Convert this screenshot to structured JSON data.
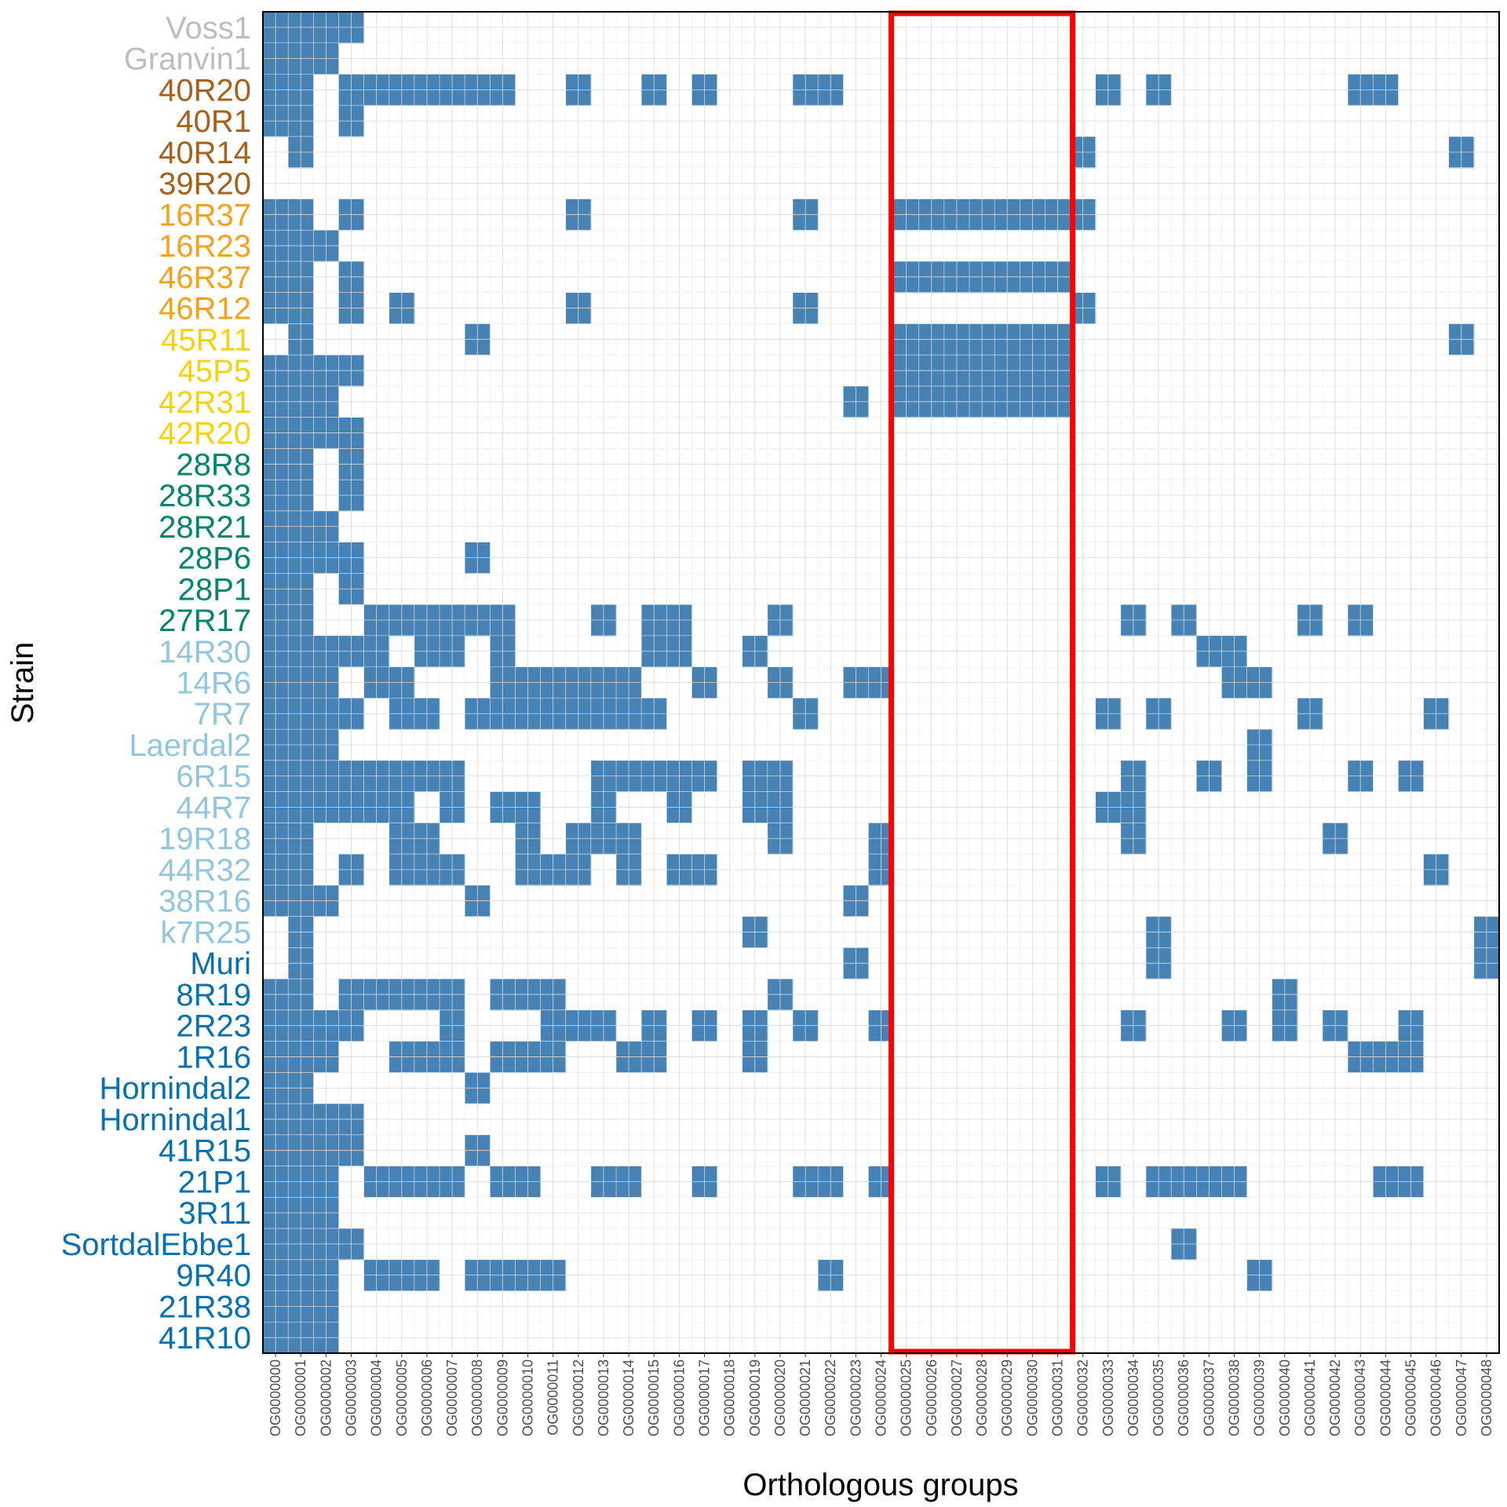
{
  "chart_data": {
    "type": "heatmap",
    "xlabel": "Orthologous groups",
    "ylabel": "Strain",
    "x_categories": [
      "OG0000000",
      "OG0000001",
      "OG0000002",
      "OG0000003",
      "OG0000004",
      "OG0000005",
      "OG0000006",
      "OG0000007",
      "OG0000008",
      "OG0000009",
      "OG0000010",
      "OG0000011",
      "OG0000012",
      "OG0000013",
      "OG0000014",
      "OG0000015",
      "OG0000016",
      "OG0000017",
      "OG0000018",
      "OG0000019",
      "OG0000020",
      "OG0000021",
      "OG0000022",
      "OG0000023",
      "OG0000024",
      "OG0000025",
      "OG0000026",
      "OG0000027",
      "OG0000028",
      "OG0000029",
      "OG0000030",
      "OG0000031",
      "OG0000032",
      "OG0000033",
      "OG0000034",
      "OG0000035",
      "OG0000036",
      "OG0000037",
      "OG0000038",
      "OG0000039",
      "OG0000040",
      "OG0000041",
      "OG0000042",
      "OG0000043",
      "OG0000044",
      "OG0000045",
      "OG0000046",
      "OG0000047",
      "OG0000048"
    ],
    "y_categories": [
      "Voss1",
      "Granvin1",
      "40R20",
      "40R1",
      "40R14",
      "39R20",
      "16R37",
      "16R23",
      "46R37",
      "46R12",
      "45R11",
      "45P5",
      "42R31",
      "42R20",
      "28R8",
      "28R33",
      "28R21",
      "28P6",
      "28P1",
      "27R17",
      "14R30",
      "14R6",
      "7R7",
      "Laerdal2",
      "6R15",
      "44R7",
      "19R18",
      "44R32",
      "38R16",
      "k7R25",
      "Muri",
      "8R19",
      "2R23",
      "1R16",
      "Hornindal2",
      "Hornindal1",
      "41R15",
      "21P1",
      "3R11",
      "SortdalEbbe1",
      "9R40",
      "21R38",
      "41R10"
    ],
    "label_colors": [
      "#bdbdbd",
      "#bdbdbd",
      "#a6611a",
      "#a6611a",
      "#a6611a",
      "#a6611a",
      "#f4a21d",
      "#f4a21d",
      "#f4a21d",
      "#f4a21d",
      "#f5d20c",
      "#f5d20c",
      "#f5d20c",
      "#f5d20c",
      "#018571",
      "#018571",
      "#018571",
      "#018571",
      "#018571",
      "#018571",
      "#92c5de",
      "#92c5de",
      "#92c5de",
      "#92c5de",
      "#92c5de",
      "#92c5de",
      "#92c5de",
      "#92c5de",
      "#92c5de",
      "#92c5de",
      "#0571b0",
      "#0571b0",
      "#0571b0",
      "#0571b0",
      "#0571b0",
      "#0571b0",
      "#0571b0",
      "#0571b0",
      "#0571b0",
      "#0571b0",
      "#0571b0",
      "#0571b0",
      "#0571b0"
    ],
    "presence": {
      "Voss1": [
        0,
        1,
        2,
        3
      ],
      "Granvin1": [
        0,
        1,
        2
      ],
      "40R20": [
        0,
        1,
        3,
        4,
        5,
        6,
        7,
        8,
        9,
        12,
        15,
        17,
        21,
        22,
        33,
        35,
        43,
        44
      ],
      "40R1": [
        0,
        1,
        3
      ],
      "40R14": [
        1,
        32,
        47
      ],
      "39R20": [],
      "16R37": [
        0,
        1,
        3,
        12,
        21,
        25,
        26,
        27,
        28,
        29,
        30,
        31,
        32
      ],
      "16R23": [
        0,
        1,
        2
      ],
      "46R37": [
        0,
        1,
        3,
        25,
        26,
        27,
        28,
        29,
        30,
        31
      ],
      "46R12": [
        0,
        1,
        3,
        5,
        12,
        21,
        32
      ],
      "45R11": [
        1,
        8,
        25,
        26,
        27,
        28,
        29,
        30,
        31,
        47
      ],
      "45P5": [
        0,
        1,
        2,
        3,
        25,
        26,
        27,
        28,
        29,
        30,
        31
      ],
      "42R31": [
        0,
        1,
        2,
        23,
        25,
        26,
        27,
        28,
        29,
        30,
        31
      ],
      "42R20": [
        0,
        1,
        2,
        3
      ],
      "28R8": [
        0,
        1,
        3
      ],
      "28R33": [
        0,
        1,
        3
      ],
      "28R21": [
        0,
        1,
        2
      ],
      "28P6": [
        0,
        1,
        2,
        3,
        8
      ],
      "28P1": [
        0,
        1,
        3
      ],
      "27R17": [
        0,
        1,
        4,
        5,
        6,
        7,
        8,
        9,
        13,
        15,
        16,
        20,
        34,
        36,
        41,
        43
      ],
      "14R30": [
        0,
        1,
        2,
        3,
        4,
        6,
        7,
        9,
        15,
        16,
        19,
        37,
        38
      ],
      "14R6": [
        0,
        1,
        2,
        4,
        5,
        9,
        10,
        11,
        12,
        13,
        14,
        17,
        20,
        23,
        24,
        38,
        39
      ],
      "7R7": [
        0,
        1,
        2,
        3,
        5,
        6,
        8,
        9,
        10,
        11,
        12,
        13,
        14,
        15,
        21,
        33,
        35,
        41,
        46
      ],
      "Laerdal2": [
        0,
        1,
        2,
        39
      ],
      "6R15": [
        0,
        1,
        2,
        3,
        4,
        5,
        6,
        7,
        13,
        14,
        15,
        16,
        17,
        19,
        20,
        34,
        37,
        39,
        43,
        45
      ],
      "44R7": [
        0,
        1,
        2,
        3,
        4,
        5,
        7,
        9,
        10,
        13,
        16,
        19,
        20,
        33,
        34
      ],
      "19R18": [
        0,
        1,
        5,
        6,
        10,
        12,
        13,
        14,
        20,
        24,
        34,
        42
      ],
      "44R32": [
        0,
        1,
        3,
        5,
        6,
        7,
        10,
        11,
        12,
        14,
        16,
        17,
        24,
        46
      ],
      "38R16": [
        0,
        1,
        2,
        8,
        23
      ],
      "k7R25": [
        1,
        19,
        35,
        48
      ],
      "Muri": [
        1,
        23,
        35,
        48
      ],
      "8R19": [
        0,
        1,
        3,
        4,
        5,
        6,
        7,
        9,
        10,
        11,
        20,
        40
      ],
      "2R23": [
        0,
        1,
        2,
        3,
        7,
        11,
        12,
        13,
        15,
        17,
        19,
        21,
        24,
        34,
        38,
        40,
        42,
        45
      ],
      "1R16": [
        0,
        1,
        2,
        5,
        6,
        7,
        9,
        10,
        11,
        14,
        15,
        19,
        43,
        44,
        45
      ],
      "Hornindal2": [
        0,
        1,
        8
      ],
      "Hornindal1": [
        0,
        1,
        2,
        3
      ],
      "41R15": [
        0,
        1,
        2,
        3,
        8
      ],
      "21P1": [
        0,
        1,
        2,
        4,
        5,
        6,
        7,
        9,
        10,
        13,
        14,
        17,
        21,
        22,
        24,
        33,
        35,
        36,
        37,
        38,
        44,
        45
      ],
      "3R11": [
        0,
        1,
        2
      ],
      "SortdalEbbe1": [
        0,
        1,
        2,
        3,
        36
      ],
      "9R40": [
        0,
        1,
        2,
        4,
        5,
        6,
        8,
        9,
        10,
        11,
        22,
        39
      ],
      "21R38": [
        0,
        1,
        2
      ],
      "41R10": [
        0,
        1,
        2
      ]
    },
    "highlight": {
      "x_from": "OG0000025",
      "x_to": "OG0000031",
      "color": "#ff0000"
    },
    "colors": {
      "filled": "#4682b4",
      "empty": "#ffffff",
      "grid": "#d9d9d9",
      "panel_border": "#000000"
    },
    "grid": true,
    "legend": "none"
  }
}
